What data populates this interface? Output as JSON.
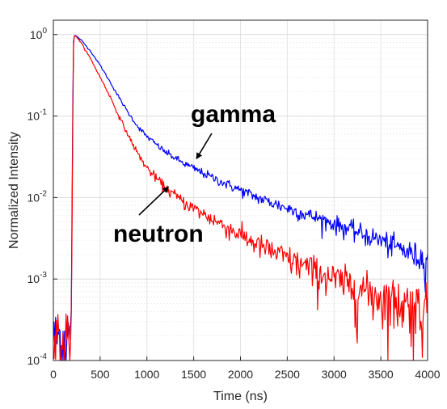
{
  "chart_data": {
    "type": "line",
    "xlabel": "Time (ns)",
    "ylabel": "Normalized Intensity",
    "xlim": [
      0,
      4000
    ],
    "ylim": [
      0.0001,
      1.5
    ],
    "yscale": "log",
    "grid": true,
    "x_ticks": [
      0,
      500,
      1000,
      1500,
      2000,
      2500,
      3000,
      3500,
      4000
    ],
    "x_tick_labels": [
      "0",
      "500",
      "1000",
      "1500",
      "2000",
      "2500",
      "3000",
      "3500",
      "4000"
    ],
    "y_ticks": [
      0.0001,
      0.001,
      0.01,
      0.1,
      1
    ],
    "y_tick_labels": [
      {
        "base": "10",
        "exp": "-4"
      },
      {
        "base": "10",
        "exp": "-3"
      },
      {
        "base": "10",
        "exp": "-2"
      },
      {
        "base": "10",
        "exp": "-1"
      },
      {
        "base": "10",
        "exp": "0"
      }
    ],
    "series": [
      {
        "name": "gamma",
        "color": "#0000ff",
        "x": [
          0,
          60,
          120,
          190,
          200,
          210,
          215,
          222,
          230,
          250,
          300,
          400,
          500,
          600,
          700,
          800,
          900,
          1000,
          1200,
          1400,
          1600,
          1800,
          2000,
          2200,
          2500,
          3000,
          3500,
          4000
        ],
        "y": [
          0.0002,
          0.0002,
          0.0002,
          0.0002,
          0.01,
          0.3,
          0.8,
          0.95,
          0.98,
          0.95,
          0.85,
          0.62,
          0.42,
          0.27,
          0.17,
          0.11,
          0.075,
          0.056,
          0.036,
          0.026,
          0.02,
          0.0155,
          0.0123,
          0.0098,
          0.0074,
          0.0048,
          0.003,
          0.0017
        ]
      },
      {
        "name": "neutron",
        "color": "#ff0000",
        "x": [
          0,
          60,
          120,
          190,
          200,
          210,
          215,
          222,
          230,
          250,
          300,
          400,
          500,
          600,
          700,
          800,
          900,
          1000,
          1200,
          1400,
          1600,
          1800,
          2000,
          2200,
          2500,
          3000,
          3500,
          4000
        ],
        "y": [
          0.0002,
          0.0002,
          0.0002,
          0.0002,
          0.005,
          0.2,
          0.7,
          0.95,
          0.97,
          0.93,
          0.78,
          0.5,
          0.3,
          0.18,
          0.1,
          0.058,
          0.035,
          0.023,
          0.013,
          0.0087,
          0.0063,
          0.0047,
          0.0035,
          0.0026,
          0.0018,
          0.001,
          0.00062,
          0.00045
        ]
      }
    ],
    "annotations": [
      {
        "text": "gamma",
        "target_series": "gamma",
        "arrow_to": [
          1530,
          0.03
        ]
      },
      {
        "text": "neutron",
        "target_series": "neutron",
        "arrow_to": [
          1230,
          0.0135
        ]
      }
    ]
  }
}
